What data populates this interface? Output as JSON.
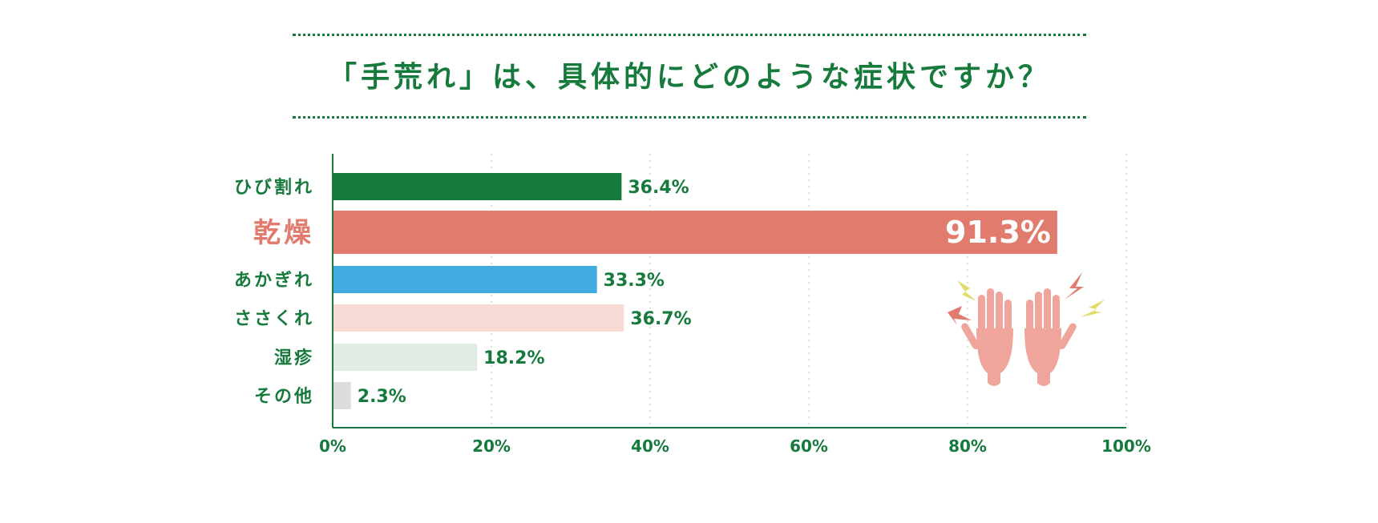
{
  "title": "「手荒れ」は、具体的にどのような症状ですか？",
  "colors": {
    "green": "#157a3c",
    "dryness": "#e07b6d",
    "blue": "#40ace0",
    "pink": "#f9dbd5",
    "pale_green": "#e1ede2",
    "gray": "#dddddd",
    "hand": "#f0a59c",
    "spark_yellow": "#e2dc6c"
  },
  "chart_data": {
    "type": "bar",
    "orientation": "horizontal",
    "categories": [
      "ひび割れ",
      "乾燥",
      "あかぎれ",
      "ささくれ",
      "湿疹",
      "その他"
    ],
    "values": [
      36.4,
      91.3,
      33.3,
      36.7,
      18.2,
      2.3
    ],
    "value_labels": [
      "36.4%",
      "91.3%",
      "33.3%",
      "36.7%",
      "18.2%",
      "2.3%"
    ],
    "bar_colors": [
      "#157a3c",
      "#e07b6d",
      "#40ace0",
      "#f9dbd5",
      "#e1ede2",
      "#dddddd"
    ],
    "highlight_index": 1,
    "xlim": [
      0,
      100
    ],
    "xticks": [
      0,
      20,
      40,
      60,
      80,
      100
    ],
    "xtick_labels": [
      "0%",
      "20%",
      "40%",
      "60%",
      "80%",
      "100%"
    ],
    "grid": true,
    "illustration": "hands-icon"
  }
}
